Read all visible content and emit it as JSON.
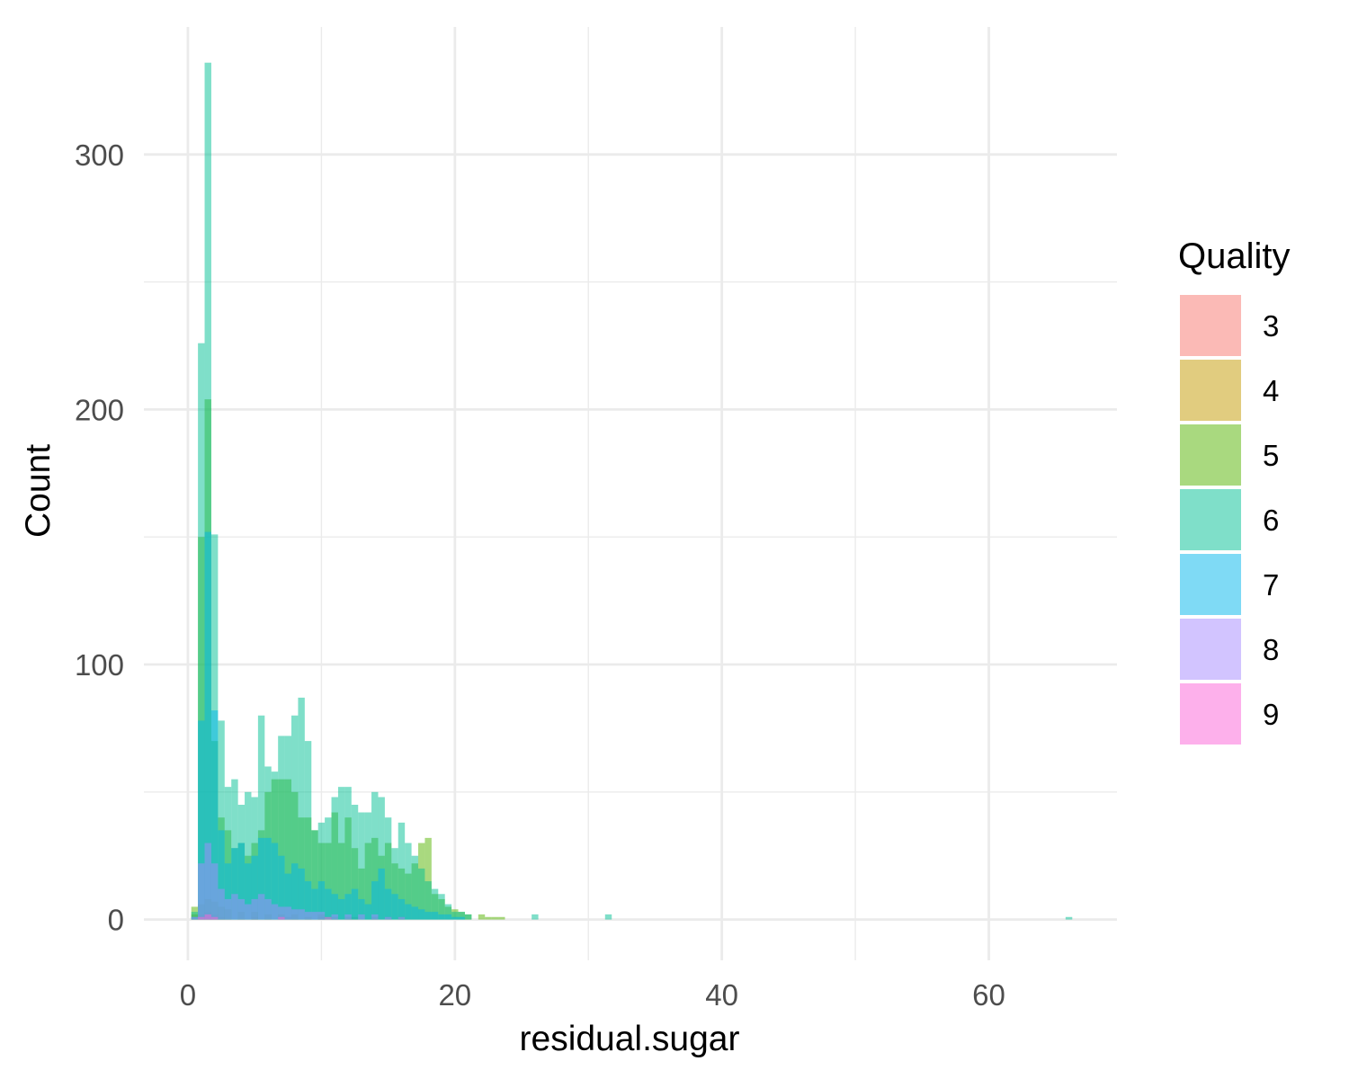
{
  "chart_data": {
    "type": "bar",
    "subtype": "overlaid-histogram",
    "xlabel": "residual.sugar",
    "ylabel": "Count",
    "xlim": [
      -3.3,
      69.6
    ],
    "ylim": [
      -16,
      350
    ],
    "x_ticks": [
      0,
      20,
      40,
      60
    ],
    "x_tick_labels": [
      "0",
      "20",
      "40",
      "60"
    ],
    "y_ticks": [
      0,
      100,
      200,
      300
    ],
    "y_tick_labels": [
      "0",
      "100",
      "200",
      "300"
    ],
    "bin_width": 0.5,
    "bar_opacity": 0.5,
    "grid": true,
    "legend": {
      "title": "Quality",
      "position": "right"
    },
    "series": [
      {
        "name": "3",
        "color": "#F8766D",
        "points": [
          [
            0.5,
            1
          ],
          [
            1.0,
            2
          ],
          [
            1.5,
            3
          ],
          [
            2.0,
            2
          ],
          [
            2.5,
            1
          ],
          [
            5.0,
            1
          ],
          [
            7.5,
            1
          ],
          [
            10.0,
            1
          ],
          [
            12.5,
            1
          ],
          [
            15.0,
            1
          ]
        ]
      },
      {
        "name": "4",
        "color": "#C49A00",
        "points": [
          [
            0.5,
            2
          ],
          [
            1.0,
            6
          ],
          [
            1.5,
            8
          ],
          [
            2.0,
            7
          ],
          [
            2.5,
            5
          ],
          [
            3.0,
            4
          ],
          [
            4.0,
            3
          ],
          [
            5.0,
            3
          ],
          [
            6.0,
            2
          ],
          [
            7.0,
            2
          ],
          [
            8.0,
            2
          ],
          [
            9.0,
            1
          ],
          [
            10.0,
            2
          ],
          [
            11.0,
            1
          ],
          [
            12.0,
            1
          ],
          [
            14.0,
            1
          ],
          [
            16.0,
            1
          ]
        ]
      },
      {
        "name": "5",
        "color": "#53B400",
        "points": [
          [
            0.5,
            5
          ],
          [
            1.0,
            150
          ],
          [
            1.5,
            204
          ],
          [
            2.0,
            70
          ],
          [
            2.5,
            40
          ],
          [
            3.0,
            35
          ],
          [
            3.5,
            28
          ],
          [
            4.0,
            30
          ],
          [
            4.5,
            25
          ],
          [
            5.0,
            30
          ],
          [
            5.5,
            35
          ],
          [
            6.0,
            50
          ],
          [
            6.5,
            55
          ],
          [
            7.0,
            55
          ],
          [
            7.5,
            55
          ],
          [
            8.0,
            50
          ],
          [
            8.5,
            40
          ],
          [
            9.0,
            40
          ],
          [
            9.5,
            35
          ],
          [
            10.0,
            30
          ],
          [
            10.5,
            30
          ],
          [
            11.0,
            42
          ],
          [
            11.5,
            30
          ],
          [
            12.0,
            40
          ],
          [
            12.5,
            28
          ],
          [
            13.0,
            20
          ],
          [
            13.5,
            30
          ],
          [
            14.0,
            32
          ],
          [
            14.5,
            25
          ],
          [
            15.0,
            30
          ],
          [
            15.5,
            22
          ],
          [
            16.0,
            20
          ],
          [
            16.5,
            18
          ],
          [
            17.0,
            22
          ],
          [
            17.5,
            30
          ],
          [
            18.0,
            32
          ],
          [
            18.5,
            10
          ],
          [
            19.0,
            8
          ],
          [
            19.5,
            5
          ],
          [
            20.0,
            4
          ],
          [
            20.5,
            3
          ],
          [
            21.0,
            2
          ],
          [
            22.0,
            2
          ],
          [
            22.5,
            1
          ],
          [
            23.0,
            1
          ],
          [
            23.5,
            1
          ]
        ]
      },
      {
        "name": "6",
        "color": "#00C094",
        "points": [
          [
            0.5,
            3
          ],
          [
            1.0,
            226
          ],
          [
            1.5,
            336
          ],
          [
            2.0,
            151
          ],
          [
            2.5,
            78
          ],
          [
            3.0,
            52
          ],
          [
            3.5,
            55
          ],
          [
            4.0,
            45
          ],
          [
            4.5,
            50
          ],
          [
            5.0,
            48
          ],
          [
            5.5,
            80
          ],
          [
            6.0,
            60
          ],
          [
            6.5,
            58
          ],
          [
            7.0,
            72
          ],
          [
            7.5,
            72
          ],
          [
            8.0,
            80
          ],
          [
            8.5,
            87
          ],
          [
            9.0,
            70
          ],
          [
            9.5,
            35
          ],
          [
            10.0,
            38
          ],
          [
            10.5,
            40
          ],
          [
            11.0,
            48
          ],
          [
            11.5,
            52
          ],
          [
            12.0,
            52
          ],
          [
            12.5,
            45
          ],
          [
            13.0,
            42
          ],
          [
            13.5,
            42
          ],
          [
            14.0,
            50
          ],
          [
            14.5,
            48
          ],
          [
            15.0,
            40
          ],
          [
            15.5,
            28
          ],
          [
            16.0,
            38
          ],
          [
            16.5,
            30
          ],
          [
            17.0,
            25
          ],
          [
            17.5,
            20
          ],
          [
            18.0,
            15
          ],
          [
            18.5,
            12
          ],
          [
            19.0,
            10
          ],
          [
            19.5,
            6
          ],
          [
            20.0,
            3
          ],
          [
            20.5,
            3
          ],
          [
            21.0,
            2
          ],
          [
            26.0,
            2
          ],
          [
            31.5,
            2
          ],
          [
            66.0,
            1
          ]
        ]
      },
      {
        "name": "7",
        "color": "#00B6EB",
        "points": [
          [
            0.5,
            1
          ],
          [
            1.0,
            78
          ],
          [
            1.5,
            152
          ],
          [
            2.0,
            82
          ],
          [
            2.5,
            35
          ],
          [
            3.0,
            22
          ],
          [
            3.5,
            28
          ],
          [
            4.0,
            30
          ],
          [
            4.5,
            22
          ],
          [
            5.0,
            25
          ],
          [
            5.5,
            32
          ],
          [
            6.0,
            32
          ],
          [
            6.5,
            30
          ],
          [
            7.0,
            25
          ],
          [
            7.5,
            18
          ],
          [
            8.0,
            22
          ],
          [
            8.5,
            20
          ],
          [
            9.0,
            15
          ],
          [
            9.5,
            12
          ],
          [
            10.0,
            15
          ],
          [
            10.5,
            12
          ],
          [
            11.0,
            10
          ],
          [
            11.5,
            8
          ],
          [
            12.0,
            10
          ],
          [
            12.5,
            12
          ],
          [
            13.0,
            8
          ],
          [
            13.5,
            6
          ],
          [
            14.0,
            15
          ],
          [
            14.5,
            20
          ],
          [
            15.0,
            12
          ],
          [
            15.5,
            10
          ],
          [
            16.0,
            8
          ],
          [
            16.5,
            6
          ],
          [
            17.0,
            5
          ],
          [
            17.5,
            4
          ],
          [
            18.0,
            3
          ],
          [
            18.5,
            3
          ],
          [
            19.0,
            2
          ],
          [
            19.5,
            2
          ],
          [
            20.0,
            1
          ],
          [
            20.5,
            1
          ]
        ]
      },
      {
        "name": "8",
        "color": "#A58AFF",
        "points": [
          [
            0.5,
            1
          ],
          [
            1.0,
            22
          ],
          [
            1.5,
            30
          ],
          [
            2.0,
            22
          ],
          [
            2.5,
            12
          ],
          [
            3.0,
            8
          ],
          [
            3.5,
            10
          ],
          [
            4.0,
            8
          ],
          [
            4.5,
            6
          ],
          [
            5.0,
            8
          ],
          [
            5.5,
            10
          ],
          [
            6.0,
            8
          ],
          [
            6.5,
            6
          ],
          [
            7.0,
            5
          ],
          [
            7.5,
            5
          ],
          [
            8.0,
            4
          ],
          [
            8.5,
            4
          ],
          [
            9.0,
            3
          ],
          [
            9.5,
            3
          ],
          [
            10.0,
            3
          ],
          [
            11.0,
            2
          ],
          [
            12.0,
            2
          ],
          [
            13.0,
            2
          ],
          [
            14.0,
            2
          ],
          [
            15.0,
            1
          ],
          [
            16.0,
            1
          ]
        ]
      },
      {
        "name": "9",
        "color": "#FB61D7",
        "points": [
          [
            1.0,
            1
          ],
          [
            1.5,
            2
          ],
          [
            2.0,
            1
          ],
          [
            7.0,
            1
          ],
          [
            10.5,
            1
          ]
        ]
      }
    ]
  }
}
